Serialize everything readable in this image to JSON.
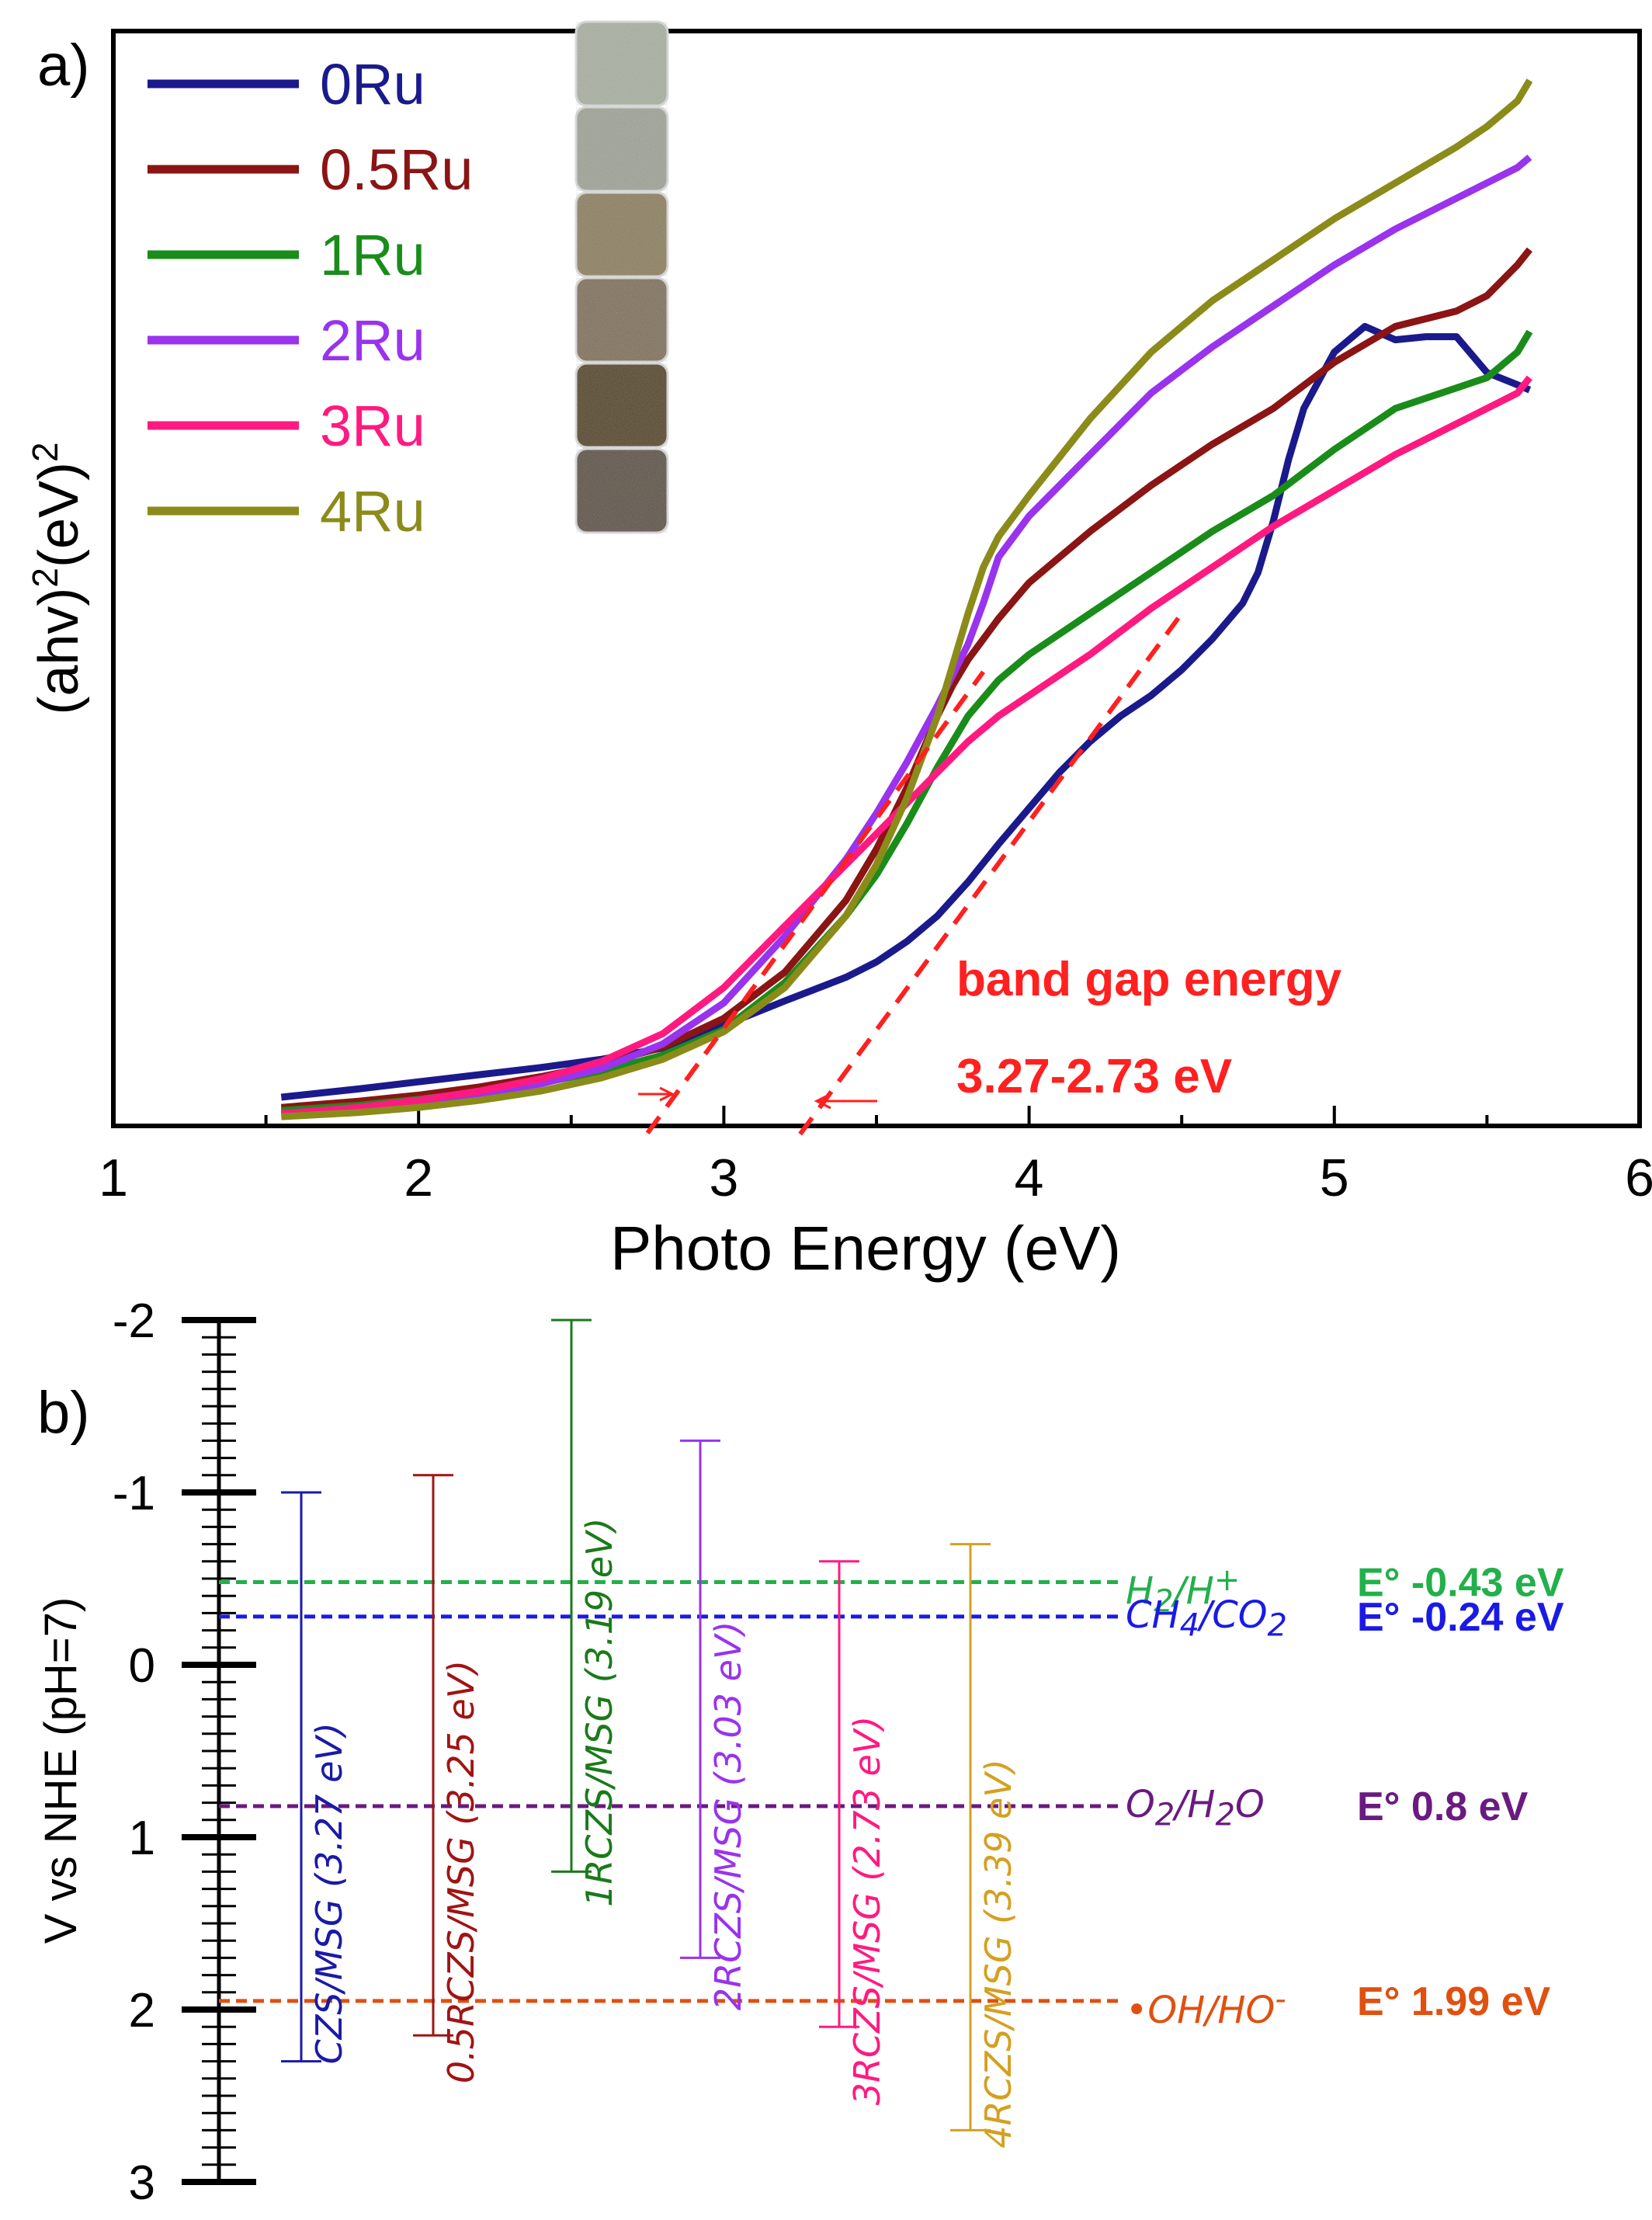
{
  "panel_a": {
    "label": "a)",
    "chart_data": {
      "type": "line",
      "title": "",
      "xlabel": "Photo Energy (eV)",
      "ylabel": "(ahv)²(eV)²",
      "xlim": [
        1,
        6
      ],
      "ylim": [
        0,
        100
      ],
      "x_ticks": [
        "1",
        "2",
        "3",
        "4",
        "5",
        "6"
      ],
      "y_ticks_shown": false,
      "series": [
        {
          "name": "0Ru",
          "color": "#1a1a8c",
          "x": [
            1.55,
            1.8,
            2.0,
            2.2,
            2.4,
            2.6,
            2.8,
            3.0,
            3.2,
            3.4,
            3.5,
            3.6,
            3.7,
            3.8,
            3.9,
            4.0,
            4.1,
            4.2,
            4.3,
            4.4,
            4.5,
            4.6,
            4.7,
            4.75,
            4.8,
            4.85,
            4.9,
            5.0,
            5.1,
            5.2,
            5.3,
            5.4,
            5.5,
            5.6,
            5.64
          ],
          "y": [
            2.8,
            3.6,
            4.3,
            5.0,
            5.7,
            6.5,
            7.6,
            9.8,
            12.2,
            14.5,
            16.0,
            18.0,
            20.5,
            23.8,
            27.5,
            31.0,
            34.5,
            37.5,
            40.0,
            42.0,
            44.5,
            47.5,
            51.0,
            54.0,
            59.0,
            65.0,
            70.0,
            75.5,
            78.0,
            76.7,
            77.0,
            77.0,
            73.5,
            72.3,
            71.8
          ]
        },
        {
          "name": "0.5Ru",
          "color": "#8b1414",
          "x": [
            1.55,
            1.8,
            2.0,
            2.2,
            2.4,
            2.6,
            2.8,
            3.0,
            3.2,
            3.4,
            3.5,
            3.6,
            3.7,
            3.75,
            3.8,
            3.9,
            4.0,
            4.2,
            4.4,
            4.6,
            4.8,
            5.0,
            5.2,
            5.4,
            5.5,
            5.6,
            5.64
          ],
          "y": [
            1.8,
            2.4,
            3.0,
            3.8,
            4.8,
            6.0,
            7.7,
            10.5,
            15.0,
            22.0,
            27.0,
            33.0,
            40.0,
            43.0,
            45.5,
            49.5,
            53.0,
            58.0,
            62.5,
            66.5,
            70.0,
            74.5,
            78.0,
            79.5,
            81.0,
            84.0,
            85.5
          ]
        },
        {
          "name": "1Ru",
          "color": "#1a8c1a",
          "x": [
            1.55,
            1.8,
            2.0,
            2.2,
            2.4,
            2.6,
            2.8,
            3.0,
            3.2,
            3.4,
            3.5,
            3.6,
            3.7,
            3.8,
            3.9,
            4.0,
            4.2,
            4.4,
            4.6,
            4.8,
            5.0,
            5.2,
            5.4,
            5.5,
            5.6,
            5.64
          ],
          "y": [
            1.5,
            2.0,
            2.6,
            3.3,
            4.2,
            5.3,
            6.9,
            9.4,
            14.0,
            20.5,
            24.5,
            29.5,
            35.0,
            40.0,
            43.5,
            46.0,
            50.0,
            54.0,
            58.0,
            61.5,
            66.0,
            70.0,
            72.0,
            73.0,
            75.5,
            77.5
          ]
        },
        {
          "name": "2Ru",
          "color": "#9933ee",
          "x": [
            1.55,
            1.8,
            2.0,
            2.2,
            2.4,
            2.6,
            2.8,
            3.0,
            3.2,
            3.4,
            3.5,
            3.6,
            3.7,
            3.8,
            3.85,
            3.9,
            4.0,
            4.2,
            4.4,
            4.6,
            4.8,
            5.0,
            5.2,
            5.4,
            5.5,
            5.6,
            5.64
          ],
          "y": [
            1.2,
            1.7,
            2.3,
            3.1,
            4.1,
            5.6,
            8.0,
            12.0,
            18.5,
            26.0,
            30.5,
            35.5,
            41.0,
            47.0,
            51.0,
            55.5,
            59.5,
            65.5,
            71.5,
            76.0,
            80.0,
            84.0,
            87.5,
            90.5,
            92.0,
            93.5,
            94.5
          ]
        },
        {
          "name": "3Ru",
          "color": "#ff1a80",
          "x": [
            1.55,
            1.8,
            2.0,
            2.2,
            2.4,
            2.6,
            2.8,
            3.0,
            3.2,
            3.4,
            3.6,
            3.7,
            3.8,
            3.9,
            4.0,
            4.2,
            4.4,
            4.6,
            4.8,
            5.0,
            5.2,
            5.4,
            5.6,
            5.64
          ],
          "y": [
            1.2,
            1.8,
            2.5,
            3.4,
            4.6,
            6.3,
            9.0,
            13.5,
            19.5,
            25.5,
            31.5,
            34.5,
            37.5,
            40.0,
            42.0,
            46.0,
            50.5,
            54.5,
            58.5,
            62.0,
            65.5,
            68.5,
            71.5,
            73.0
          ]
        },
        {
          "name": "4Ru",
          "color": "#8b8b1a",
          "x": [
            1.55,
            1.8,
            2.0,
            2.2,
            2.4,
            2.6,
            2.8,
            3.0,
            3.2,
            3.4,
            3.5,
            3.6,
            3.7,
            3.75,
            3.8,
            3.85,
            3.9,
            4.0,
            4.2,
            4.4,
            4.6,
            4.8,
            5.0,
            5.2,
            5.4,
            5.5,
            5.6,
            5.64
          ],
          "y": [
            0.9,
            1.3,
            1.8,
            2.5,
            3.4,
            4.7,
            6.5,
            9.2,
            13.5,
            20.5,
            25.5,
            32.0,
            40.0,
            45.0,
            50.0,
            54.5,
            57.5,
            61.5,
            69.0,
            75.5,
            80.5,
            84.5,
            88.5,
            92.0,
            95.5,
            97.5,
            100.0,
            102.0
          ]
        }
      ],
      "tangent_lines": [
        {
          "name": "tangent-2Ru",
          "color": "#ff2020",
          "x": [
            2.75,
            3.85
          ],
          "y": [
            -0.7,
            44.3
          ]
        },
        {
          "name": "tangent-0Ru",
          "color": "#ff2020",
          "x": [
            3.25,
            4.5
          ],
          "y": [
            -0.8,
            50.0
          ]
        }
      ],
      "annotations": [
        {
          "text": "band gap energy",
          "color": "#ff2020"
        },
        {
          "text": "3.27-2.73 eV",
          "color": "#ff2020"
        }
      ]
    }
  },
  "panel_b": {
    "label": "b)",
    "chart_data": {
      "type": "range",
      "ylabel": "V vs NHE (pH=7)",
      "ylim": [
        -2,
        3
      ],
      "y_inverted": true,
      "y_ticks": [
        "-2",
        "-1",
        "0",
        "1",
        "2",
        "3"
      ],
      "bars": [
        {
          "name": "CZS/MSG",
          "gap": "(3.27 eV)",
          "top": -1.0,
          "bottom": 2.3,
          "color": "#1a1aa8"
        },
        {
          "name": "0.5RCZS/MSG",
          "gap": "(3.25 eV)",
          "top": -1.1,
          "bottom": 2.15,
          "color": "#a01414"
        },
        {
          "name": "1RCZS/MSG",
          "gap": "(3.19 eV)",
          "top": -2.0,
          "bottom": 1.2,
          "color": "#1a7a1a"
        },
        {
          "name": "2RCZS/MSG",
          "gap": "(3.03 eV)",
          "top": -1.3,
          "bottom": 1.7,
          "color": "#9933ee"
        },
        {
          "name": "3RCZS/MSG",
          "gap": "(2.73 eV)",
          "top": -0.6,
          "bottom": 2.1,
          "color": "#ff1a80"
        },
        {
          "name": "4RCZS/MSG",
          "gap": "(3.39 eV)",
          "top": -0.7,
          "bottom": 2.7,
          "color": "#d4a020"
        }
      ],
      "reference_lines": [
        {
          "name": "H2/H+",
          "couple_html": "H<sub>2</sub>/H<sup>+</sup>",
          "value_label": "E° -0.43 eV",
          "level": -0.48,
          "color": "#22b04a"
        },
        {
          "name": "CH4/CO2",
          "couple_html": "CH<sub>4</sub>/CO<sub>2</sub>",
          "value_label": "E° -0.24 eV",
          "level": -0.28,
          "color": "#1a1ae6"
        },
        {
          "name": "O2/H2O",
          "couple_html": "O<sub>2</sub>/H<sub>2</sub>O",
          "value_label": "E° 0.8 eV",
          "level": 0.82,
          "color": "#6a1a80"
        },
        {
          "name": "OH/HO-",
          "couple_html": "•OH/HO<sup>-</sup>",
          "value_label": "E° 1.99 eV",
          "level": 1.95,
          "color": "#e05010"
        }
      ]
    }
  },
  "swatch_colors": [
    "#a8b0a0",
    "#9ea296",
    "#8c7e5e",
    "#7f705a",
    "#55452a",
    "#5c5246"
  ]
}
